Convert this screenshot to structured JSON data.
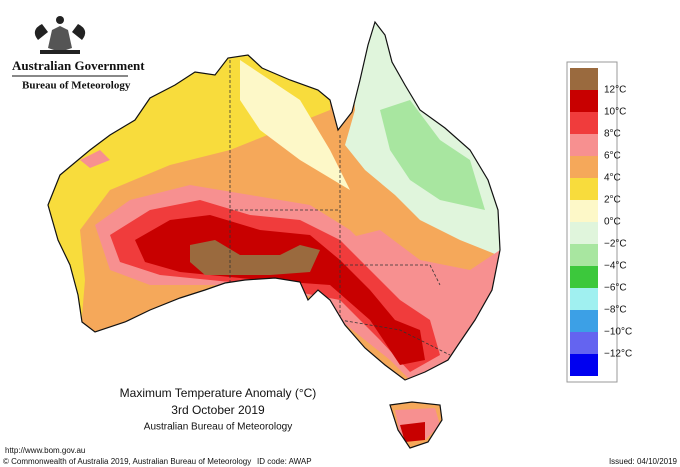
{
  "header": {
    "government": "Australian Government",
    "bureau": "Bureau of Meteorology"
  },
  "legend": {
    "items": [
      {
        "color": "#9a6a3e",
        "label": null
      },
      {
        "color": "#c80000",
        "label": "12°C"
      },
      {
        "color": "#f03c3c",
        "label": "10°C"
      },
      {
        "color": "#f79090",
        "label": "8°C"
      },
      {
        "color": "#f5a85a",
        "label": "6°C"
      },
      {
        "color": "#f8dc3c",
        "label": "4°C"
      },
      {
        "color": "#fdf8c8",
        "label": "2°C"
      },
      {
        "color": "#e0f5dc",
        "label": "0°C"
      },
      {
        "color": "#a8e6a0",
        "label": "−2°C"
      },
      {
        "color": "#3cc83c",
        "label": "−4°C"
      },
      {
        "color": "#a0f0f0",
        "label": "−6°C"
      },
      {
        "color": "#3ca0e6",
        "label": "−8°C"
      },
      {
        "color": "#6464f0",
        "label": "−10°C"
      },
      {
        "color": "#0000f0",
        "label": "−12°C"
      }
    ]
  },
  "caption": {
    "title": "Maximum Temperature Anomaly (°C)",
    "date": "3rd October 2019",
    "source": "Australian Bureau of Meteorology"
  },
  "footer": {
    "url": "http://www.bom.gov.au",
    "copyright": "© Commonwealth of Australia 2019, Australian Bureau of Meteorology",
    "id_code": "ID code: AWAP",
    "issued": "Issued: 04/10/2019"
  }
}
